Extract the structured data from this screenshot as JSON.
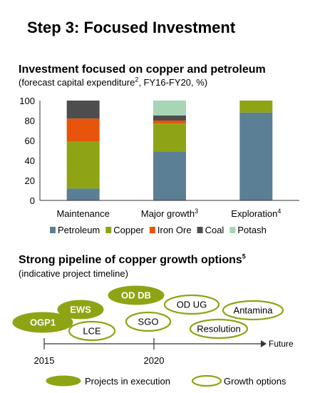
{
  "page_title": "Step 3: Focused Investment",
  "colors": {
    "Petroleum": "#5b7f95",
    "Copper": "#8ea414",
    "Iron Ore": "#e8540b",
    "Coal": "#4d4d4d",
    "Potash": "#a8d5b5",
    "pipeline_green": "#8ea414",
    "axis": "#333333"
  },
  "chart_data": {
    "type": "bar",
    "stacked": true,
    "title": "Investment focused on copper and petroleum",
    "subtitle_parts": [
      "(forecast capital expenditure",
      "2",
      ", FY16-FY20, %)"
    ],
    "categories": [
      "Maintenance",
      "Major growth",
      "Exploration"
    ],
    "category_notes": [
      "",
      "3",
      "4"
    ],
    "ylim": [
      0,
      100
    ],
    "yticks": [
      0,
      20,
      40,
      60,
      80,
      100
    ],
    "legend_position": "bottom",
    "series": [
      {
        "name": "Petroleum",
        "values": [
          12,
          49,
          88
        ]
      },
      {
        "name": "Copper",
        "values": [
          47,
          28,
          12
        ]
      },
      {
        "name": "Iron Ore",
        "values": [
          23,
          3,
          0
        ]
      },
      {
        "name": "Coal",
        "values": [
          18,
          5,
          0
        ]
      },
      {
        "name": "Potash",
        "values": [
          0,
          15,
          0
        ]
      }
    ]
  },
  "pipeline": {
    "title": "Strong pipeline of copper growth options",
    "title_note": "5",
    "subtitle": "(indicative project timeline)",
    "axis_end_label": "Future",
    "ticks": [
      "2015",
      "2020"
    ],
    "projects": [
      {
        "label": "OGP1",
        "status": "execution"
      },
      {
        "label": "EWS",
        "status": "execution"
      },
      {
        "label": "OD DB",
        "status": "execution"
      },
      {
        "label": "LCE",
        "status": "option"
      },
      {
        "label": "SGO",
        "status": "option"
      },
      {
        "label": "OD UG",
        "status": "option"
      },
      {
        "label": "Antamina",
        "status": "option"
      },
      {
        "label": "Resolution",
        "status": "option"
      }
    ],
    "legend": {
      "execution": "Projects in execution",
      "option": "Growth options"
    }
  }
}
